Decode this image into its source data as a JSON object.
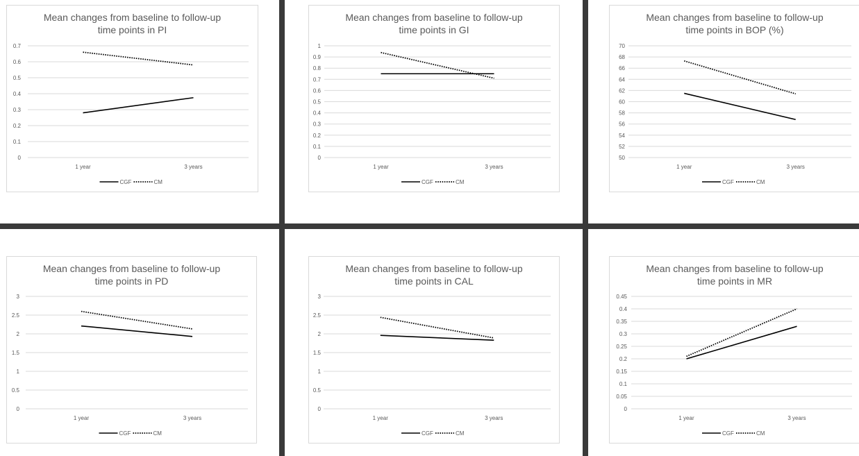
{
  "chart_data": [
    {
      "type": "line",
      "title_lines": [
        "Mean changes from baseline to follow-up",
        "time points  in PI"
      ],
      "categories": [
        "1 year",
        "3 years"
      ],
      "yticks": [
        "0",
        "0.1",
        "0.2",
        "0.3",
        "0.4",
        "0.5",
        "0.6",
        "0.7"
      ],
      "ylim": [
        0,
        0.7
      ],
      "series": [
        {
          "name": "CGF",
          "values": [
            0.28,
            0.375
          ],
          "style": "solid"
        },
        {
          "name": "CM",
          "values": [
            0.66,
            0.58
          ],
          "style": "dotted"
        }
      ]
    },
    {
      "type": "line",
      "title_lines": [
        "Mean changes from baseline to follow-up",
        "time points  in GI"
      ],
      "categories": [
        "1 year",
        "3 years"
      ],
      "yticks": [
        "0",
        "0.1",
        "0.2",
        "0.3",
        "0.4",
        "0.5",
        "0.6",
        "0.7",
        "0.8",
        "0.9",
        "1"
      ],
      "ylim": [
        0,
        1
      ],
      "series": [
        {
          "name": "CGF",
          "values": [
            0.75,
            0.75
          ],
          "style": "solid"
        },
        {
          "name": "CM",
          "values": [
            0.94,
            0.71
          ],
          "style": "dotted"
        }
      ]
    },
    {
      "type": "line",
      "title_lines": [
        "Mean changes from baseline to follow-up",
        "time points  in BOP (%)"
      ],
      "categories": [
        "1 year",
        "3 years"
      ],
      "yticks": [
        "50",
        "52",
        "54",
        "56",
        "58",
        "60",
        "62",
        "64",
        "66",
        "68",
        "70"
      ],
      "ylim": [
        50,
        70
      ],
      "series": [
        {
          "name": "CGF",
          "values": [
            61.5,
            56.8
          ],
          "style": "solid"
        },
        {
          "name": "CM",
          "values": [
            67.3,
            61.4
          ],
          "style": "dotted"
        }
      ]
    },
    {
      "type": "line",
      "title_lines": [
        "Mean changes from baseline to follow-up",
        "time points  in PD"
      ],
      "categories": [
        "1 year",
        "3 years"
      ],
      "yticks": [
        "0",
        "0.5",
        "1",
        "1.5",
        "2",
        "2.5",
        "3"
      ],
      "ylim": [
        0,
        3
      ],
      "series": [
        {
          "name": "CGF",
          "values": [
            2.21,
            1.93
          ],
          "style": "solid"
        },
        {
          "name": "CM",
          "values": [
            2.6,
            2.13
          ],
          "style": "dotted"
        }
      ]
    },
    {
      "type": "line",
      "title_lines": [
        "Mean changes from baseline to follow-up",
        "time points  in CAL"
      ],
      "categories": [
        "1 year",
        "3 years"
      ],
      "yticks": [
        "0",
        "0.5",
        "1",
        "1.5",
        "2",
        "2.5",
        "3"
      ],
      "ylim": [
        0,
        3
      ],
      "series": [
        {
          "name": "CGF",
          "values": [
            1.96,
            1.83
          ],
          "style": "solid"
        },
        {
          "name": "CM",
          "values": [
            2.44,
            1.89
          ],
          "style": "dotted"
        }
      ]
    },
    {
      "type": "line",
      "title_lines": [
        "Mean changes from baseline to follow-up",
        "time points  in MR"
      ],
      "categories": [
        "1 year",
        "3 years"
      ],
      "yticks": [
        "0",
        "0.05",
        "0.1",
        "0.15",
        "0.2",
        "0.25",
        "0.3",
        "0.35",
        "0.4",
        "0.45"
      ],
      "ylim": [
        0,
        0.45
      ],
      "series": [
        {
          "name": "CGF",
          "values": [
            0.2,
            0.33
          ],
          "style": "solid"
        },
        {
          "name": "CM",
          "values": [
            0.21,
            0.4
          ],
          "style": "dotted"
        }
      ]
    }
  ]
}
